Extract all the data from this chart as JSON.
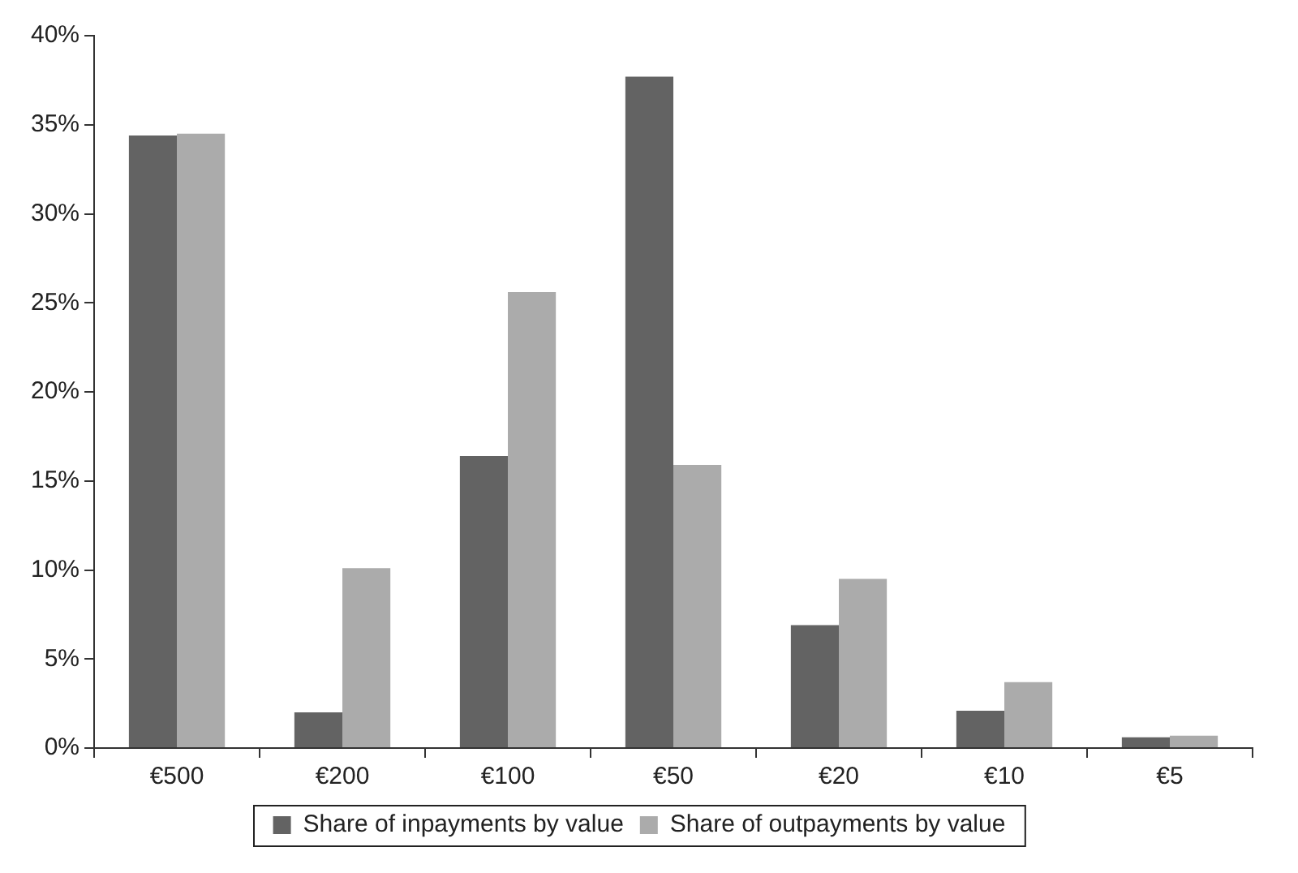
{
  "chart_data": {
    "type": "bar",
    "categories": [
      "€500",
      "€200",
      "€100",
      "€50",
      "€20",
      "€10",
      "€5"
    ],
    "series": [
      {
        "name": "Share of inpayments by value",
        "color": "#636363",
        "values": [
          34.4,
          2.0,
          16.4,
          37.7,
          6.9,
          2.1,
          0.6
        ]
      },
      {
        "name": "Share of outpayments by value",
        "color": "#ababab",
        "values": [
          34.5,
          10.1,
          25.6,
          15.9,
          9.5,
          3.7,
          0.7
        ]
      }
    ],
    "ylim": [
      0,
      40
    ],
    "yticks": [
      {
        "value": 0,
        "label": "0%"
      },
      {
        "value": 5,
        "label": "5%"
      },
      {
        "value": 10,
        "label": "10%"
      },
      {
        "value": 15,
        "label": "15%"
      },
      {
        "value": 20,
        "label": "20%"
      },
      {
        "value": 25,
        "label": "25%"
      },
      {
        "value": 30,
        "label": "30%"
      },
      {
        "value": 35,
        "label": "35%"
      },
      {
        "value": 40,
        "label": "40%"
      }
    ],
    "grid": false,
    "legend": "bottom"
  }
}
